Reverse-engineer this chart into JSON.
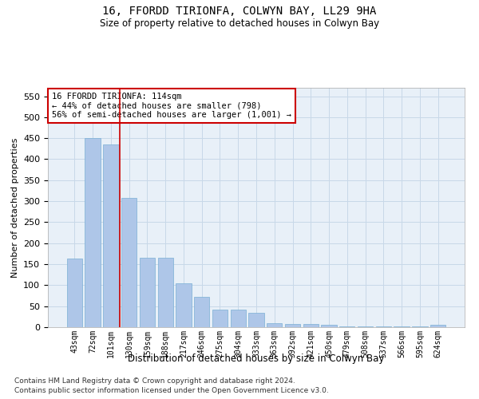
{
  "title": "16, FFORDD TIRIONFA, COLWYN BAY, LL29 9HA",
  "subtitle": "Size of property relative to detached houses in Colwyn Bay",
  "xlabel": "Distribution of detached houses by size in Colwyn Bay",
  "ylabel": "Number of detached properties",
  "categories": [
    "43sqm",
    "72sqm",
    "101sqm",
    "130sqm",
    "159sqm",
    "188sqm",
    "217sqm",
    "246sqm",
    "275sqm",
    "304sqm",
    "333sqm",
    "363sqm",
    "392sqm",
    "421sqm",
    "450sqm",
    "479sqm",
    "508sqm",
    "537sqm",
    "566sqm",
    "595sqm",
    "624sqm"
  ],
  "values": [
    163,
    450,
    435,
    307,
    165,
    165,
    105,
    73,
    42,
    42,
    35,
    10,
    7,
    7,
    5,
    2,
    2,
    1,
    1,
    1,
    5
  ],
  "bar_color": "#aec6e8",
  "bar_edge_color": "#7aafd4",
  "vline_x_index": 2.5,
  "vline_color": "#cc0000",
  "annotation_text": "16 FFORDD TIRIONFA: 114sqm\n← 44% of detached houses are smaller (798)\n56% of semi-detached houses are larger (1,001) →",
  "annotation_box_color": "#ffffff",
  "annotation_box_edge_color": "#cc0000",
  "ylim": [
    0,
    570
  ],
  "yticks": [
    0,
    50,
    100,
    150,
    200,
    250,
    300,
    350,
    400,
    450,
    500,
    550
  ],
  "grid_color": "#c8d8e8",
  "background_color": "#e8f0f8",
  "footer_line1": "Contains HM Land Registry data © Crown copyright and database right 2024.",
  "footer_line2": "Contains public sector information licensed under the Open Government Licence v3.0."
}
